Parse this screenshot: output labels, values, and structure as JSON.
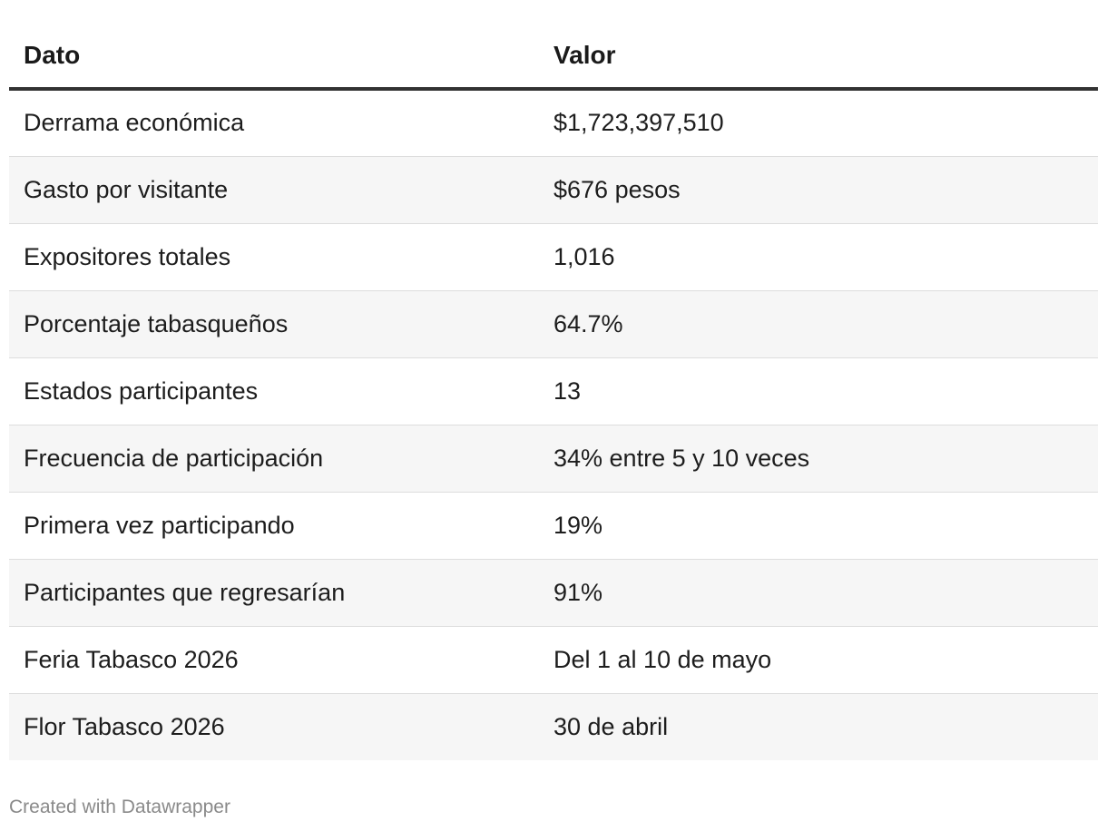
{
  "table": {
    "headers": [
      "Dato",
      "Valor"
    ],
    "rows": [
      [
        "Derrama económica",
        "$1,723,397,510"
      ],
      [
        "Gasto por visitante",
        "$676 pesos"
      ],
      [
        "Expositores totales",
        "1,016"
      ],
      [
        "Porcentaje tabasqueños",
        "64.7%"
      ],
      [
        "Estados participantes",
        "13"
      ],
      [
        "Frecuencia de participación",
        "34% entre 5 y 10 veces"
      ],
      [
        "Primera vez participando",
        "19%"
      ],
      [
        "Participantes que regresarían",
        "91%"
      ],
      [
        "Feria Tabasco 2026",
        "Del 1 al 10 de mayo"
      ],
      [
        "Flor Tabasco 2026",
        "30 de abril"
      ]
    ]
  },
  "footer": {
    "credit": "Created with Datawrapper"
  }
}
